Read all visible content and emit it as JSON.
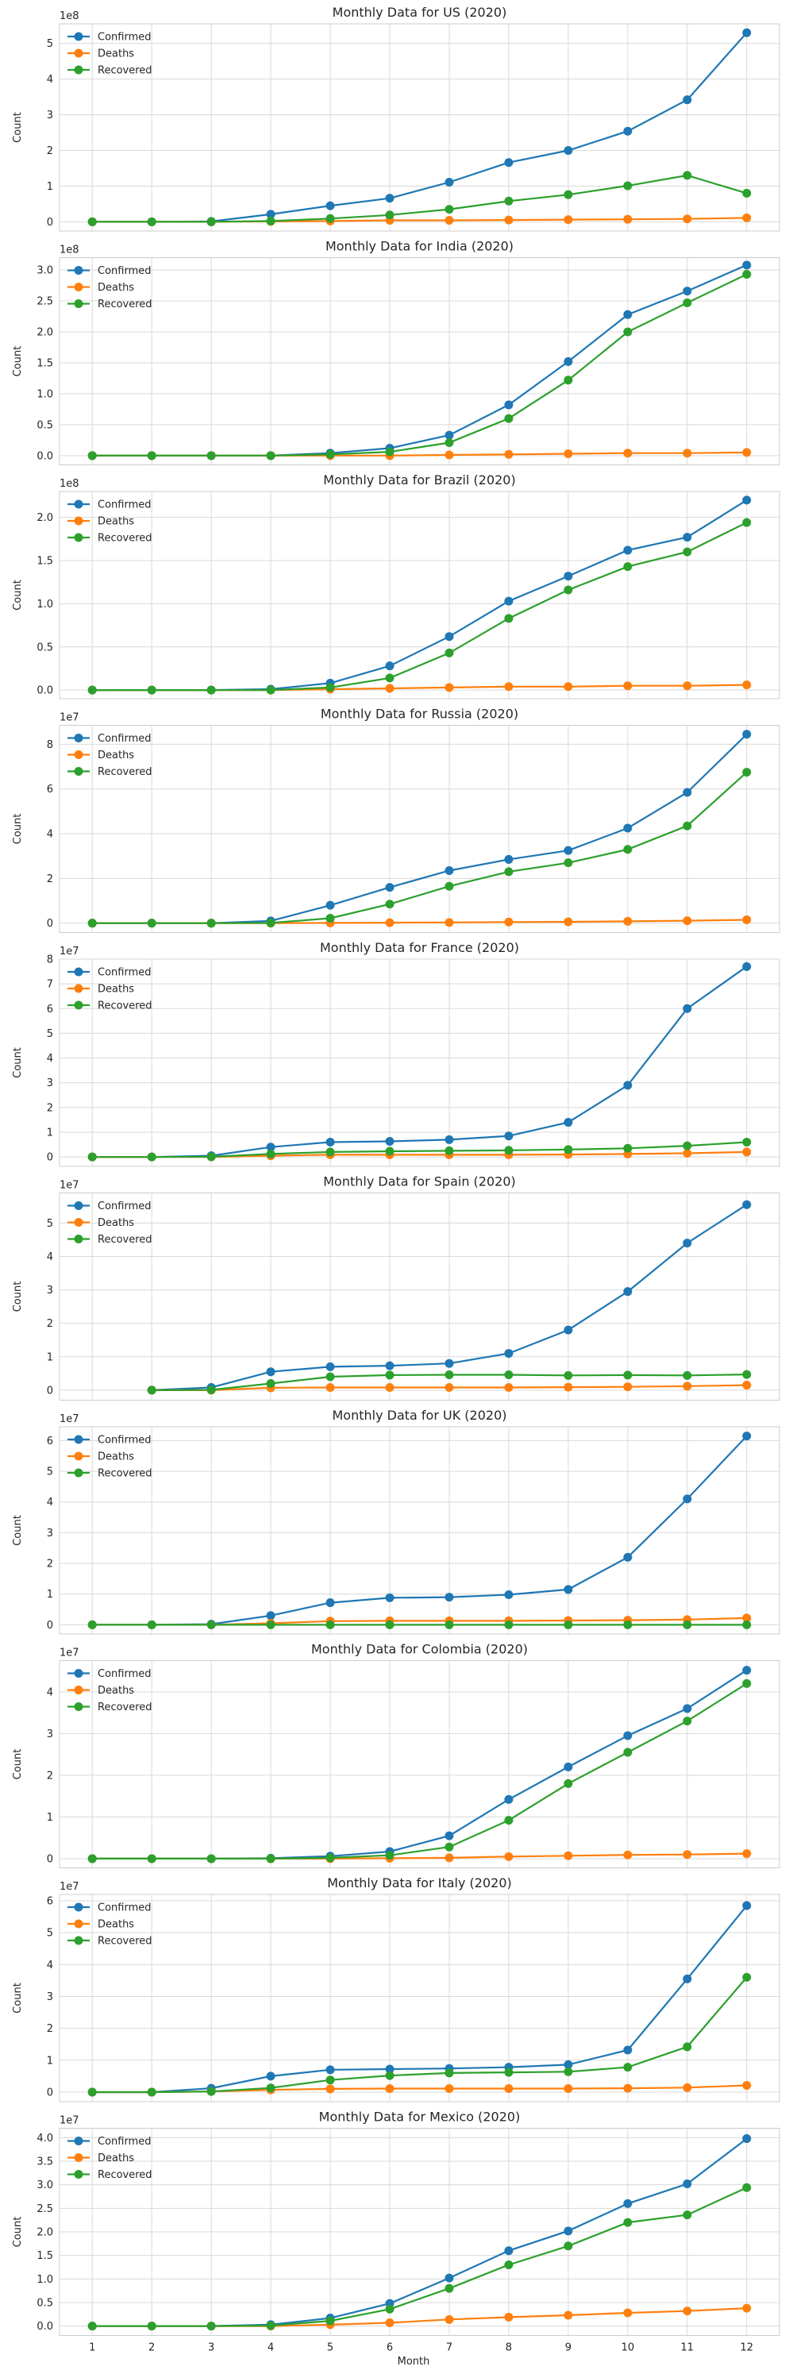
{
  "figure": {
    "xlabel": "Month",
    "ylabel": "Count",
    "xticks": [
      1,
      2,
      3,
      4,
      5,
      6,
      7,
      8,
      9,
      10,
      11,
      12
    ]
  },
  "colors": {
    "Confirmed": "#1f77b4",
    "Deaths": "#ff7f0e",
    "Recovered": "#2ca02c"
  },
  "chart_data": [
    {
      "type": "line",
      "title": "Monthly Data for US (2020)",
      "exponent_label": "1e8",
      "scale": 100000000,
      "ylim": [
        -0.26,
        5.55
      ],
      "yticks": [
        0,
        1,
        2,
        3,
        4,
        5
      ],
      "legend": "top-left",
      "x": [
        1,
        2,
        3,
        4,
        5,
        6,
        7,
        8,
        9,
        10,
        11,
        12
      ],
      "series": [
        {
          "name": "Confirmed",
          "values": [
            0.0,
            0.0,
            0.01,
            0.21,
            0.45,
            0.66,
            1.11,
            1.66,
            2.0,
            2.54,
            3.42,
            5.3
          ]
        },
        {
          "name": "Deaths",
          "values": [
            0.0,
            0.0,
            0.0,
            0.01,
            0.02,
            0.04,
            0.04,
            0.05,
            0.06,
            0.07,
            0.08,
            0.11
          ]
        },
        {
          "name": "Recovered",
          "values": [
            0.0,
            0.0,
            0.0,
            0.02,
            0.09,
            0.19,
            0.35,
            0.58,
            0.76,
            1.01,
            1.3,
            0.8
          ]
        }
      ]
    },
    {
      "type": "line",
      "title": "Monthly Data for India (2020)",
      "exponent_label": "1e8",
      "scale": 100000000,
      "ylim": [
        -0.15,
        3.2
      ],
      "yticks": [
        0.0,
        0.5,
        1.0,
        1.5,
        2.0,
        2.5,
        3.0
      ],
      "yticklabels": [
        "0.0",
        "0.5",
        "1.0",
        "1.5",
        "2.0",
        "2.5",
        "3.0"
      ],
      "legend": "top-left",
      "x": [
        1,
        2,
        3,
        4,
        5,
        6,
        7,
        8,
        9,
        10,
        11,
        12
      ],
      "series": [
        {
          "name": "Confirmed",
          "values": [
            0.0,
            0.0,
            0.0,
            0.0,
            0.04,
            0.12,
            0.33,
            0.82,
            1.52,
            2.28,
            2.66,
            3.08
          ]
        },
        {
          "name": "Deaths",
          "values": [
            0.0,
            0.0,
            0.0,
            0.0,
            0.0,
            0.0,
            0.01,
            0.02,
            0.03,
            0.04,
            0.04,
            0.05
          ]
        },
        {
          "name": "Recovered",
          "values": [
            0.0,
            0.0,
            0.0,
            0.0,
            0.02,
            0.06,
            0.21,
            0.6,
            1.22,
            2.0,
            2.47,
            2.93
          ]
        }
      ]
    },
    {
      "type": "line",
      "title": "Monthly Data for Brazil (2020)",
      "exponent_label": "1e8",
      "scale": 100000000,
      "ylim": [
        -0.1,
        2.3
      ],
      "yticks": [
        0.0,
        0.5,
        1.0,
        1.5,
        2.0
      ],
      "yticklabels": [
        "0.0",
        "0.5",
        "1.0",
        "1.5",
        "2.0"
      ],
      "legend": "top-left",
      "x": [
        1,
        2,
        3,
        4,
        5,
        6,
        7,
        8,
        9,
        10,
        11,
        12
      ],
      "series": [
        {
          "name": "Confirmed",
          "values": [
            0.0,
            0.0,
            0.0,
            0.01,
            0.08,
            0.28,
            0.62,
            1.03,
            1.32,
            1.62,
            1.77,
            2.2
          ]
        },
        {
          "name": "Deaths",
          "values": [
            0.0,
            0.0,
            0.0,
            0.0,
            0.01,
            0.02,
            0.03,
            0.04,
            0.04,
            0.05,
            0.05,
            0.06
          ]
        },
        {
          "name": "Recovered",
          "values": [
            0.0,
            0.0,
            0.0,
            0.0,
            0.03,
            0.14,
            0.43,
            0.83,
            1.16,
            1.43,
            1.6,
            1.94
          ]
        }
      ]
    },
    {
      "type": "line",
      "title": "Monthly Data for Russia (2020)",
      "exponent_label": "1e7",
      "scale": 10000000,
      "ylim": [
        -0.42,
        8.85
      ],
      "yticks": [
        0,
        2,
        4,
        6,
        8
      ],
      "legend": "top-left",
      "x": [
        1,
        2,
        3,
        4,
        5,
        6,
        7,
        8,
        9,
        10,
        11,
        12
      ],
      "series": [
        {
          "name": "Confirmed",
          "values": [
            0.0,
            0.0,
            0.0,
            0.1,
            0.8,
            1.6,
            2.35,
            2.85,
            3.25,
            4.25,
            5.85,
            8.45
          ]
        },
        {
          "name": "Deaths",
          "values": [
            0.0,
            0.0,
            0.0,
            0.0,
            0.01,
            0.02,
            0.03,
            0.05,
            0.06,
            0.08,
            0.11,
            0.15
          ]
        },
        {
          "name": "Recovered",
          "values": [
            0.0,
            0.0,
            0.0,
            0.01,
            0.22,
            0.85,
            1.65,
            2.3,
            2.7,
            3.3,
            4.35,
            6.75
          ]
        }
      ]
    },
    {
      "type": "line",
      "title": "Monthly Data for France (2020)",
      "exponent_label": "1e7",
      "scale": 10000000,
      "ylim": [
        -0.38,
        8.0
      ],
      "yticks": [
        0,
        1,
        2,
        3,
        4,
        5,
        6,
        7,
        8
      ],
      "legend": "top-left",
      "x": [
        1,
        2,
        3,
        4,
        5,
        6,
        7,
        8,
        9,
        10,
        11,
        12
      ],
      "series": [
        {
          "name": "Confirmed",
          "values": [
            0.0,
            0.0,
            0.05,
            0.4,
            0.6,
            0.63,
            0.7,
            0.85,
            1.4,
            2.9,
            6.0,
            7.7
          ]
        },
        {
          "name": "Deaths",
          "values": [
            0.0,
            0.0,
            0.0,
            0.05,
            0.09,
            0.09,
            0.09,
            0.09,
            0.1,
            0.12,
            0.15,
            0.2
          ]
        },
        {
          "name": "Recovered",
          "values": [
            0.0,
            0.0,
            0.01,
            0.12,
            0.2,
            0.23,
            0.25,
            0.27,
            0.3,
            0.35,
            0.45,
            0.6
          ]
        }
      ]
    },
    {
      "type": "line",
      "title": "Monthly Data for Spain (2020)",
      "exponent_label": "1e7",
      "scale": 10000000,
      "ylim": [
        -0.3,
        5.9
      ],
      "yticks": [
        0,
        1,
        2,
        3,
        4,
        5
      ],
      "legend": "top-left",
      "x": [
        2,
        3,
        4,
        5,
        6,
        7,
        8,
        9,
        10,
        11,
        12
      ],
      "series": [
        {
          "name": "Confirmed",
          "values": [
            0.0,
            0.08,
            0.55,
            0.7,
            0.73,
            0.8,
            1.1,
            1.8,
            2.95,
            4.4,
            5.55
          ]
        },
        {
          "name": "Deaths",
          "values": [
            0.0,
            0.0,
            0.07,
            0.08,
            0.08,
            0.08,
            0.08,
            0.09,
            0.1,
            0.12,
            0.15
          ]
        },
        {
          "name": "Recovered",
          "values": [
            0.0,
            0.01,
            0.2,
            0.4,
            0.45,
            0.46,
            0.46,
            0.44,
            0.45,
            0.44,
            0.47
          ]
        }
      ]
    },
    {
      "type": "line",
      "title": "Monthly Data for UK (2020)",
      "exponent_label": "1e7",
      "scale": 10000000,
      "ylim": [
        -0.3,
        6.45
      ],
      "yticks": [
        0,
        1,
        2,
        3,
        4,
        5,
        6
      ],
      "legend": "top-left",
      "x": [
        1,
        2,
        3,
        4,
        5,
        6,
        7,
        8,
        9,
        10,
        11,
        12
      ],
      "series": [
        {
          "name": "Confirmed",
          "values": [
            0.0,
            0.0,
            0.02,
            0.3,
            0.72,
            0.88,
            0.9,
            0.98,
            1.15,
            2.2,
            4.1,
            6.15
          ]
        },
        {
          "name": "Deaths",
          "values": [
            0.0,
            0.0,
            0.0,
            0.05,
            0.12,
            0.13,
            0.13,
            0.13,
            0.14,
            0.15,
            0.17,
            0.22
          ]
        },
        {
          "name": "Recovered",
          "values": [
            0.0,
            0.0,
            0.0,
            0.0,
            0.0,
            0.0,
            0.0,
            0.0,
            0.0,
            0.0,
            0.0,
            0.0
          ]
        }
      ]
    },
    {
      "type": "line",
      "title": "Monthly Data for Colombia (2020)",
      "exponent_label": "1e7",
      "scale": 10000000,
      "ylim": [
        -0.22,
        4.75
      ],
      "yticks": [
        0,
        1,
        2,
        3,
        4
      ],
      "legend": "top-left",
      "x": [
        1,
        2,
        3,
        4,
        5,
        6,
        7,
        8,
        9,
        10,
        11,
        12
      ],
      "series": [
        {
          "name": "Confirmed",
          "values": [
            0.0,
            0.0,
            0.0,
            0.01,
            0.06,
            0.17,
            0.55,
            1.42,
            2.2,
            2.95,
            3.6,
            4.52
          ]
        },
        {
          "name": "Deaths",
          "values": [
            0.0,
            0.0,
            0.0,
            0.0,
            0.0,
            0.01,
            0.02,
            0.05,
            0.07,
            0.09,
            0.1,
            0.12
          ]
        },
        {
          "name": "Recovered",
          "values": [
            0.0,
            0.0,
            0.0,
            0.0,
            0.02,
            0.08,
            0.28,
            0.92,
            1.8,
            2.55,
            3.3,
            4.2
          ]
        }
      ]
    },
    {
      "type": "line",
      "title": "Monthly Data for Italy (2020)",
      "exponent_label": "1e7",
      "scale": 10000000,
      "ylim": [
        -0.3,
        6.2
      ],
      "yticks": [
        0,
        1,
        2,
        3,
        4,
        5,
        6
      ],
      "legend": "top-left",
      "x": [
        1,
        2,
        3,
        4,
        5,
        6,
        7,
        8,
        9,
        10,
        11,
        12
      ],
      "series": [
        {
          "name": "Confirmed",
          "values": [
            0.0,
            0.0,
            0.12,
            0.5,
            0.7,
            0.72,
            0.74,
            0.78,
            0.86,
            1.32,
            3.55,
            5.85
          ]
        },
        {
          "name": "Deaths",
          "values": [
            0.0,
            0.0,
            0.02,
            0.07,
            0.1,
            0.11,
            0.11,
            0.11,
            0.11,
            0.12,
            0.14,
            0.21
          ]
        },
        {
          "name": "Recovered",
          "values": [
            0.0,
            0.0,
            0.02,
            0.13,
            0.38,
            0.52,
            0.6,
            0.62,
            0.64,
            0.78,
            1.42,
            3.6
          ]
        }
      ]
    },
    {
      "type": "line",
      "title": "Monthly Data for Mexico (2020)",
      "exponent_label": "1e7",
      "scale": 10000000,
      "ylim": [
        -0.2,
        4.2
      ],
      "yticks": [
        0.0,
        0.5,
        1.0,
        1.5,
        2.0,
        2.5,
        3.0,
        3.5,
        4.0
      ],
      "yticklabels": [
        "0.0",
        "0.5",
        "1.0",
        "1.5",
        "2.0",
        "2.5",
        "3.0",
        "3.5",
        "4.0"
      ],
      "legend": "top-left",
      "x": [
        1,
        2,
        3,
        4,
        5,
        6,
        7,
        8,
        9,
        10,
        11,
        12
      ],
      "series": [
        {
          "name": "Confirmed",
          "values": [
            0.0,
            0.0,
            0.0,
            0.03,
            0.17,
            0.48,
            1.02,
            1.6,
            2.02,
            2.6,
            3.02,
            3.98
          ]
        },
        {
          "name": "Deaths",
          "values": [
            0.0,
            0.0,
            0.0,
            0.0,
            0.03,
            0.07,
            0.14,
            0.19,
            0.23,
            0.28,
            0.32,
            0.38
          ]
        },
        {
          "name": "Recovered",
          "values": [
            0.0,
            0.0,
            0.0,
            0.01,
            0.11,
            0.36,
            0.8,
            1.3,
            1.7,
            2.2,
            2.36,
            2.94
          ]
        }
      ]
    }
  ]
}
